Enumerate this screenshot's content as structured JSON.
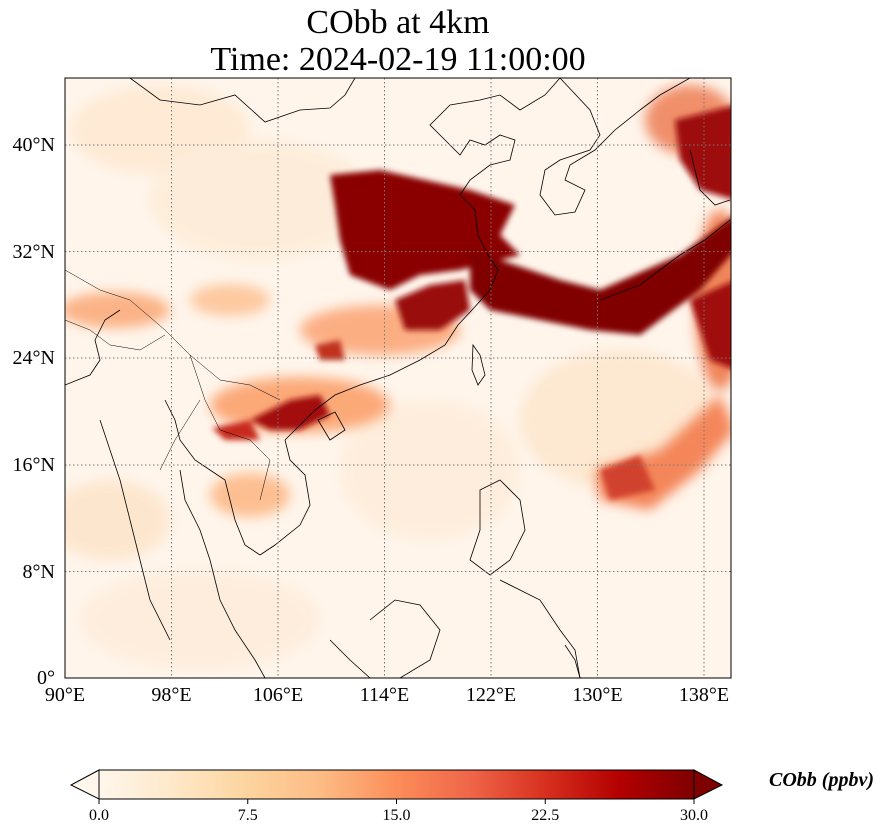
{
  "title": {
    "line1": "CObb at 4km",
    "line2": "Time: 2024-02-19 11:00:00"
  },
  "map": {
    "extent": {
      "lon": [
        90,
        139
      ],
      "lat": [
        0,
        45
      ]
    },
    "lat_ticks": [
      "40°N",
      "32°N",
      "24°N",
      "16°N",
      "8°N",
      "0°"
    ],
    "lon_ticks": [
      "90°E",
      "98°E",
      "106°E",
      "114°E",
      "122°E",
      "130°E",
      "138°E"
    ],
    "gridlines": "dotted",
    "background_color": "#fff5eb"
  },
  "colorbar": {
    "label": "CObb (ppbv)",
    "ticks": [
      "0.0",
      "7.5",
      "15.0",
      "22.5",
      "30.0"
    ],
    "range": [
      0,
      30
    ],
    "colormap": "OrRd",
    "colors": [
      "#fff7ec",
      "#fee8c8",
      "#fdd49e",
      "#fdbb84",
      "#fc8d59",
      "#ef6548",
      "#d7301f",
      "#b30000",
      "#7f0000"
    ]
  }
}
